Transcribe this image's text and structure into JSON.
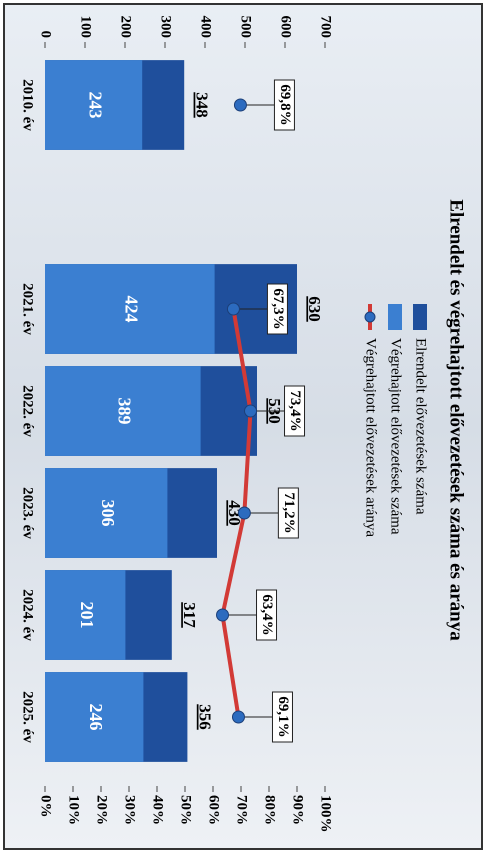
{
  "chart_data": {
    "type": "bar-line",
    "title": "Elrendelt és végrehajtott elővezetések száma és aránya",
    "categories": [
      "2010. év",
      null,
      "2021. év",
      "2022. év",
      "2023. év",
      "2024. év",
      "2025. év"
    ],
    "series": [
      {
        "name": "Elrendelt elővezetések száma",
        "color": "#1f4f9c",
        "values": [
          348,
          null,
          630,
          530,
          430,
          317,
          356
        ]
      },
      {
        "name": "Végrehajtott elővezetések száma",
        "color": "#3b7fd1",
        "values": [
          243,
          null,
          424,
          389,
          306,
          201,
          246
        ]
      },
      {
        "name": "Végrehajtott elővezetések aránya",
        "color": "#d23a36",
        "marker_color": "#2c6bbf",
        "axis": "y2",
        "values": [
          69.8,
          null,
          67.3,
          73.4,
          71.2,
          63.4,
          69.1
        ],
        "value_labels": [
          "69,8%",
          null,
          "67,3%",
          "73,4%",
          "71,2%",
          "63,4%",
          "69,1%"
        ]
      }
    ],
    "ylim": [
      0,
      700
    ],
    "yticks": [
      0,
      100,
      200,
      300,
      400,
      500,
      600,
      700
    ],
    "y2lim": [
      0,
      100
    ],
    "y2ticks": [
      {
        "value": 0,
        "label": "0%"
      },
      {
        "value": 10,
        "label": "10%"
      },
      {
        "value": 20,
        "label": "20%"
      },
      {
        "value": 30,
        "label": "30%"
      },
      {
        "value": 40,
        "label": "40%"
      },
      {
        "value": 50,
        "label": "50%"
      },
      {
        "value": 60,
        "label": "60%"
      },
      {
        "value": 70,
        "label": "70%"
      },
      {
        "value": 80,
        "label": "80%"
      },
      {
        "value": 90,
        "label": "90%"
      },
      {
        "value": 100,
        "label": "100%"
      }
    ]
  }
}
